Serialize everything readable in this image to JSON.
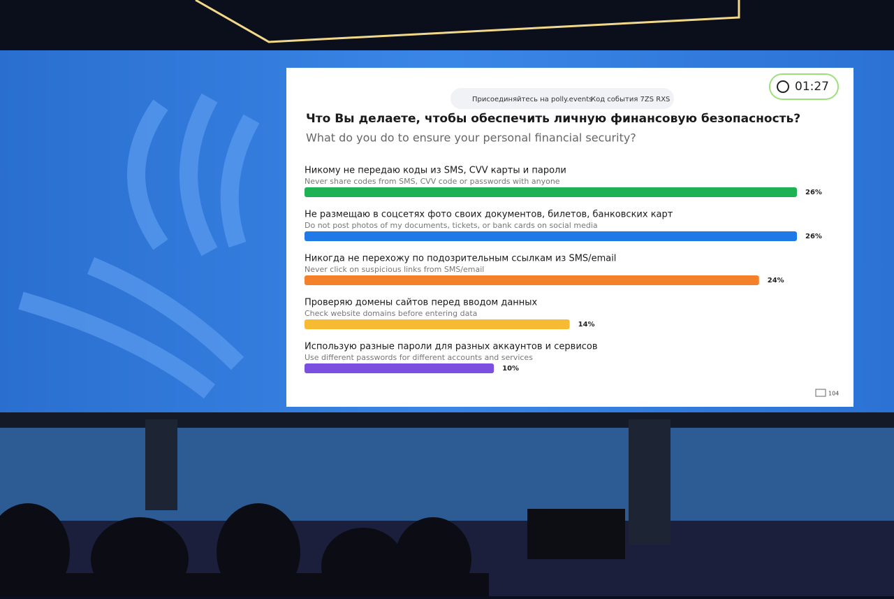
{
  "header": {
    "join_text": "Присоединяйтесь на polly.events",
    "event_code": "Код события 7ZS RXS",
    "timer": "01:27",
    "participants": "104"
  },
  "chart_data": {
    "type": "hbar",
    "title": "Что Вы делаете, чтобы обеспечить личную финансовую безопасность?",
    "subtitle": "What do you do to ensure your personal financial security?",
    "categories": [
      "Никому не передаю коды из SMS, CVV карты и пароли",
      "Не размещаю в соцсетях фото своих документов, билетов, банковских карт",
      "Никогда не перехожу по подозрительным ссылкам из SMS/email",
      "Проверяю домены сайтов перед вводом данных",
      "Использую разные пароли для разных аккаунтов и сервисов"
    ],
    "category_translations": [
      "Never share codes from SMS, CVV code or passwords with anyone",
      "Do not post photos of my documents, tickets, or bank cards on social media",
      "Never click on suspicious links from SMS/email",
      "Check website domains before entering data",
      "Use different passwords for different accounts and services"
    ],
    "values": [
      26,
      26,
      24,
      14,
      10
    ],
    "value_labels": [
      "26%",
      "26%",
      "24%",
      "14%",
      "10%"
    ],
    "colors": [
      "#1fb254",
      "#1f7ae8",
      "#f5802a",
      "#f6bb33",
      "#7b4fe0"
    ]
  }
}
